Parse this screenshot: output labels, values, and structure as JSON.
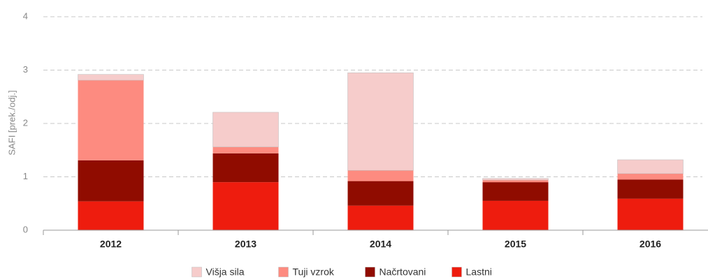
{
  "chart_data": {
    "type": "stacked_bar",
    "y_label": "SAFI [prek./odj.]",
    "categories": [
      "2012",
      "2013",
      "2014",
      "2015",
      "2016"
    ],
    "series": [
      {
        "name": "Lastni",
        "color": "#ee1c0e",
        "values": [
          0.54,
          0.9,
          0.46,
          0.55,
          0.59
        ]
      },
      {
        "name": "Načrtovani",
        "color": "#900c00",
        "values": [
          0.77,
          0.54,
          0.46,
          0.35,
          0.36
        ]
      },
      {
        "name": "Tuji vzrok",
        "color": "#fd8b80",
        "values": [
          1.5,
          0.12,
          0.2,
          0.04,
          0.11
        ]
      },
      {
        "name": "Višja sila",
        "color": "#f6cccb",
        "values": [
          0.11,
          0.65,
          1.83,
          0.03,
          0.26
        ]
      }
    ],
    "ylim": [
      0,
      4
    ],
    "yticks": [
      0,
      1,
      2,
      3,
      4
    ],
    "grid": true,
    "legend": "bottom"
  }
}
